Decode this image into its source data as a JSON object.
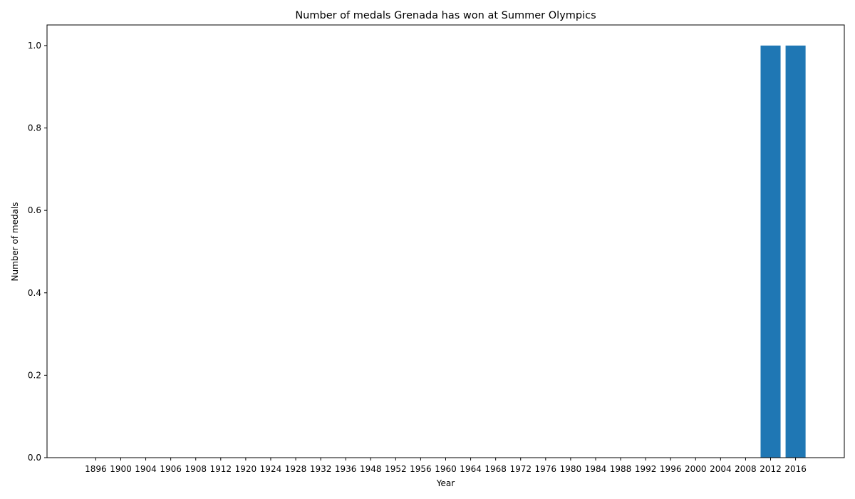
{
  "chart_data": {
    "type": "bar",
    "title": "Number of medals Grenada has won at Summer Olympics",
    "xlabel": "Year",
    "ylabel": "Number of medals",
    "categories": [
      "1896",
      "1900",
      "1904",
      "1906",
      "1908",
      "1912",
      "1920",
      "1924",
      "1928",
      "1932",
      "1936",
      "1948",
      "1952",
      "1956",
      "1960",
      "1964",
      "1968",
      "1972",
      "1976",
      "1980",
      "1984",
      "1988",
      "1992",
      "1996",
      "2000",
      "2004",
      "2008",
      "2012",
      "2016"
    ],
    "values": [
      0,
      0,
      0,
      0,
      0,
      0,
      0,
      0,
      0,
      0,
      0,
      0,
      0,
      0,
      0,
      0,
      0,
      0,
      0,
      0,
      0,
      0,
      0,
      0,
      0,
      0,
      0,
      1,
      1
    ],
    "ylim": [
      0,
      1.05
    ],
    "yticks": [
      "0.0",
      "0.2",
      "0.4",
      "0.6",
      "0.8",
      "1.0"
    ],
    "grid": false,
    "bar_color": "#1f77b4"
  }
}
